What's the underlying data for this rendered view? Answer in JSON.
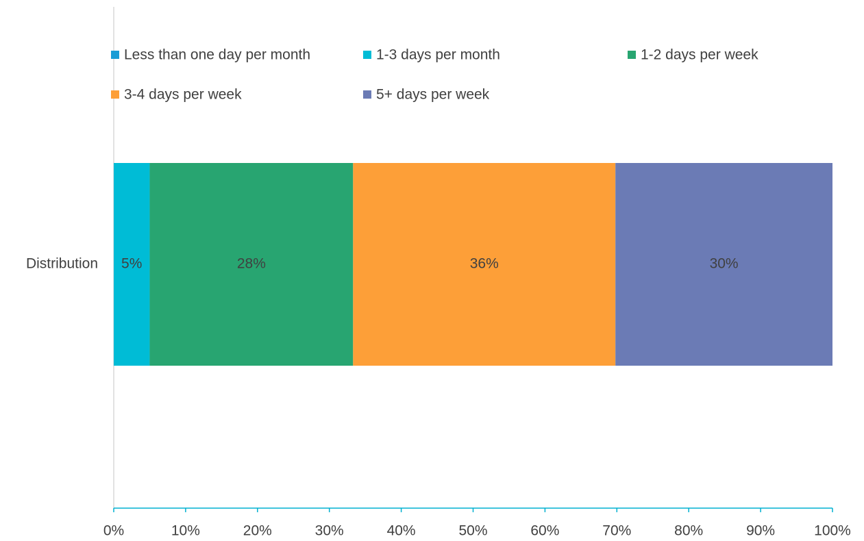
{
  "chart_data": {
    "type": "stacked_bar_horizontal",
    "categories": [
      "Distribution"
    ],
    "series": [
      {
        "name": "Less than one day per month",
        "color": "#1a9dd6",
        "values": [
          0
        ]
      },
      {
        "name": "1-3 days per month",
        "color": "#00bcd6",
        "values": [
          5
        ],
        "value_labels": [
          "5%"
        ]
      },
      {
        "name": "1-2 days per week",
        "color": "#28a571",
        "values": [
          28.3
        ],
        "value_labels": [
          "28%"
        ]
      },
      {
        "name": "3-4 days per week",
        "color": "#fd9f38",
        "values": [
          36.5
        ],
        "value_labels": [
          "36%"
        ]
      },
      {
        "name": "5+ days per week",
        "color": "#6b7bb5",
        "values": [
          30.2
        ],
        "value_labels": [
          "30%"
        ]
      }
    ],
    "xlim": [
      0,
      100
    ],
    "xticks": [
      {
        "value": 0,
        "label": "0%"
      },
      {
        "value": 10,
        "label": "10%"
      },
      {
        "value": 20,
        "label": "20%"
      },
      {
        "value": 30,
        "label": "30%"
      },
      {
        "value": 40,
        "label": "40%"
      },
      {
        "value": 50,
        "label": "50%"
      },
      {
        "value": 60,
        "label": "60%"
      },
      {
        "value": 70,
        "label": "70%"
      },
      {
        "value": 80,
        "label": "80%"
      },
      {
        "value": 90,
        "label": "90%"
      },
      {
        "value": 100,
        "label": "100%"
      }
    ],
    "grid": false,
    "legend": "top"
  }
}
